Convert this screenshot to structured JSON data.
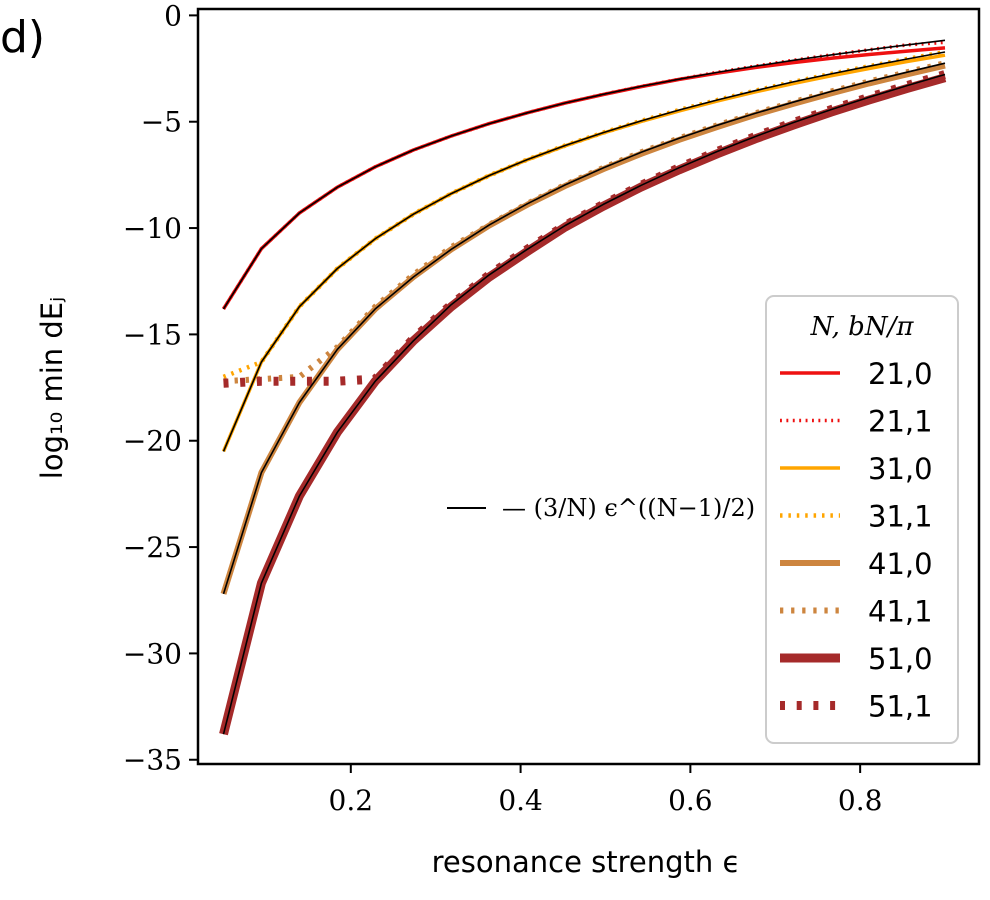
{
  "panel_label": "d)",
  "chart_data": {
    "type": "line",
    "xlabel": "resonance strength ϵ",
    "ylabel": "log₁₀ min dEⱼ",
    "xlim": [
      0.02,
      0.94
    ],
    "ylim": [
      -35.2,
      0.3
    ],
    "xticks": [
      0.2,
      0.4,
      0.6,
      0.8
    ],
    "xtick_labels": [
      "0.2",
      "0.4",
      "0.6",
      "0.8"
    ],
    "yticks": [
      0,
      -5,
      -10,
      -15,
      -20,
      -25,
      -30,
      -35
    ],
    "ytick_labels": [
      "0",
      "−5",
      "−10",
      "−15",
      "−20",
      "−25",
      "−30",
      "−35"
    ],
    "grid": false,
    "legend": {
      "title": "N, bN/π",
      "placement": "right"
    },
    "annotation": "— (3/N) ϵ^((N−1)/2)",
    "x": [
      0.05,
      0.0947,
      0.1395,
      0.1842,
      0.2289,
      0.2737,
      0.3184,
      0.3632,
      0.4079,
      0.4526,
      0.4974,
      0.5421,
      0.5868,
      0.6316,
      0.6763,
      0.7211,
      0.7658,
      0.8105,
      0.8553,
      0.9
    ],
    "series": [
      {
        "name": "21,0",
        "color": "#ee1111",
        "dash": "solid",
        "width": 3.5,
        "values": [
          -13.8,
          -10.97,
          -9.29,
          -8.08,
          -7.12,
          -6.33,
          -5.67,
          -5.09,
          -4.58,
          -4.12,
          -3.72,
          -3.35,
          -3.01,
          -2.72,
          -2.45,
          -2.22,
          -2.02,
          -1.84,
          -1.68,
          -1.53
        ]
      },
      {
        "name": "21,1",
        "color": "#ee1111",
        "dash": "dotted",
        "width": 3.5,
        "values": [
          -13.8,
          -10.97,
          -9.29,
          -8.08,
          -7.12,
          -6.33,
          -5.67,
          -5.09,
          -4.58,
          -4.12,
          -3.71,
          -3.34,
          -3.0,
          -2.68,
          -2.39,
          -2.11,
          -1.86,
          -1.62,
          -1.39,
          -1.27
        ]
      },
      {
        "name": "31,0",
        "color": "#ffa500",
        "dash": "solid",
        "width": 3.5,
        "values": [
          -20.5,
          -16.3,
          -13.7,
          -11.9,
          -10.5,
          -9.35,
          -8.38,
          -7.53,
          -6.79,
          -6.13,
          -5.53,
          -4.99,
          -4.49,
          -4.03,
          -3.6,
          -3.21,
          -2.84,
          -2.5,
          -2.17,
          -1.87
        ]
      },
      {
        "name": "31,1",
        "color": "#ffa500",
        "dash": "dotted",
        "width": 4.5,
        "values": [
          -17.0,
          -16.3,
          -13.7,
          -11.9,
          -10.5,
          -9.35,
          -8.38,
          -7.53,
          -6.78,
          -6.12,
          -5.51,
          -4.96,
          -4.45,
          -3.98,
          -3.54,
          -3.13,
          -2.75,
          -2.39,
          -2.05,
          -1.72
        ]
      },
      {
        "name": "41,0",
        "color": "#cd853f",
        "dash": "solid",
        "width": 6,
        "values": [
          -27.2,
          -21.5,
          -18.2,
          -15.7,
          -13.8,
          -12.3,
          -11.0,
          -9.88,
          -8.9,
          -8.02,
          -7.23,
          -6.51,
          -5.85,
          -5.25,
          -4.68,
          -4.16,
          -3.67,
          -3.2,
          -2.77,
          -2.36
        ]
      },
      {
        "name": "41,1",
        "color": "#cd853f",
        "dash": "dotted",
        "width": 6,
        "values": [
          -17.2,
          -17.1,
          -17.0,
          -15.6,
          -13.7,
          -12.2,
          -10.9,
          -9.85,
          -8.86,
          -7.97,
          -7.17,
          -6.44,
          -5.78,
          -5.17,
          -4.61,
          -4.08,
          -3.58,
          -3.11,
          -2.67,
          -2.25
        ]
      },
      {
        "name": "51,0",
        "color": "#a52a2a",
        "dash": "solid",
        "width": 9,
        "values": [
          -33.8,
          -26.7,
          -22.6,
          -19.6,
          -17.2,
          -15.3,
          -13.7,
          -12.3,
          -11.1,
          -9.95,
          -8.97,
          -8.07,
          -7.26,
          -6.51,
          -5.81,
          -5.16,
          -4.55,
          -3.98,
          -3.44,
          -2.93
        ]
      },
      {
        "name": "51,1",
        "color": "#a52a2a",
        "dash": "dotted",
        "width": 9,
        "values": [
          -17.3,
          -17.2,
          -17.2,
          -17.2,
          -17.1,
          -15.2,
          -13.6,
          -12.2,
          -11.0,
          -9.88,
          -8.89,
          -7.99,
          -7.16,
          -6.4,
          -5.7,
          -5.04,
          -4.43,
          -3.85,
          -3.3,
          -2.78
        ]
      }
    ],
    "fits": [
      {
        "N": 21,
        "values": [
          -13.8,
          -10.97,
          -9.29,
          -8.08,
          -7.12,
          -6.33,
          -5.67,
          -5.09,
          -4.58,
          -4.12,
          -3.71,
          -3.34,
          -3.0,
          -2.68,
          -2.39,
          -2.11,
          -1.86,
          -1.62,
          -1.39,
          -1.17
        ]
      },
      {
        "N": 31,
        "values": [
          -20.5,
          -16.3,
          -13.7,
          -11.9,
          -10.5,
          -9.35,
          -8.38,
          -7.53,
          -6.78,
          -6.12,
          -5.51,
          -4.96,
          -4.45,
          -3.98,
          -3.54,
          -3.13,
          -2.75,
          -2.39,
          -2.05,
          -1.72
        ]
      },
      {
        "N": 41,
        "values": [
          -27.2,
          -21.5,
          -18.2,
          -15.7,
          -13.8,
          -12.3,
          -11.0,
          -9.85,
          -8.86,
          -7.97,
          -7.17,
          -6.44,
          -5.78,
          -5.17,
          -4.61,
          -4.08,
          -3.58,
          -3.11,
          -2.67,
          -2.25
        ]
      },
      {
        "N": 51,
        "values": [
          -33.8,
          -26.7,
          -22.6,
          -19.6,
          -17.2,
          -15.3,
          -13.6,
          -12.2,
          -11.0,
          -9.88,
          -8.89,
          -7.99,
          -7.16,
          -6.4,
          -5.7,
          -5.04,
          -4.43,
          -3.85,
          -3.3,
          -2.78
        ]
      }
    ]
  }
}
